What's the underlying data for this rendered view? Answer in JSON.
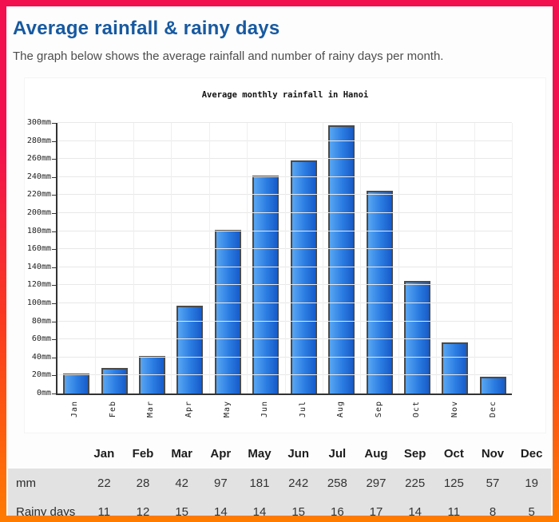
{
  "page": {
    "title": "Average rainfall & rainy days",
    "subtitle": "The graph below shows the average rainfall and number of rainy days per month.",
    "colors": {
      "frame_border_top": "#f2104e",
      "frame_border_bottom": "#ff7c00",
      "title_blue": "#1759a0",
      "bar_blue_light": "#58a6f3",
      "bar_blue_dark": "#185cc9",
      "table_row_gray": "#e2e2e2",
      "axis_dark": "#333333",
      "gridline_gray": "#e8e8e8"
    }
  },
  "chart_data": {
    "type": "bar",
    "title": "Average monthly rainfall in Hanoi",
    "categories": [
      "Jan",
      "Feb",
      "Mar",
      "Apr",
      "May",
      "Jun",
      "Jul",
      "Aug",
      "Sep",
      "Oct",
      "Nov",
      "Dec"
    ],
    "values": [
      22,
      28,
      42,
      97,
      181,
      242,
      258,
      297,
      225,
      125,
      57,
      19
    ],
    "unit": "mm",
    "xlabel": "",
    "ylabel": "",
    "ylim": [
      0,
      300
    ],
    "ytick_step": 20,
    "ytick_labels": [
      "0mm",
      "20mm",
      "40mm",
      "60mm",
      "80mm",
      "100mm",
      "120mm",
      "140mm",
      "160mm",
      "180mm",
      "200mm",
      "220mm",
      "240mm",
      "260mm",
      "280mm",
      "300mm"
    ],
    "grid": "on",
    "legend": "none",
    "xlabel_rotation": "vertical-bottom-to-top"
  },
  "table": {
    "header": [
      "",
      "Jan",
      "Feb",
      "Mar",
      "Apr",
      "May",
      "Jun",
      "Jul",
      "Aug",
      "Sep",
      "Oct",
      "Nov",
      "Dec"
    ],
    "rows": [
      {
        "label": "mm",
        "values": [
          22,
          28,
          42,
          97,
          181,
          242,
          258,
          297,
          225,
          125,
          57,
          19
        ]
      },
      {
        "label": "Rainy days",
        "values": [
          11,
          12,
          15,
          14,
          14,
          15,
          16,
          17,
          14,
          11,
          8,
          5
        ]
      }
    ]
  }
}
